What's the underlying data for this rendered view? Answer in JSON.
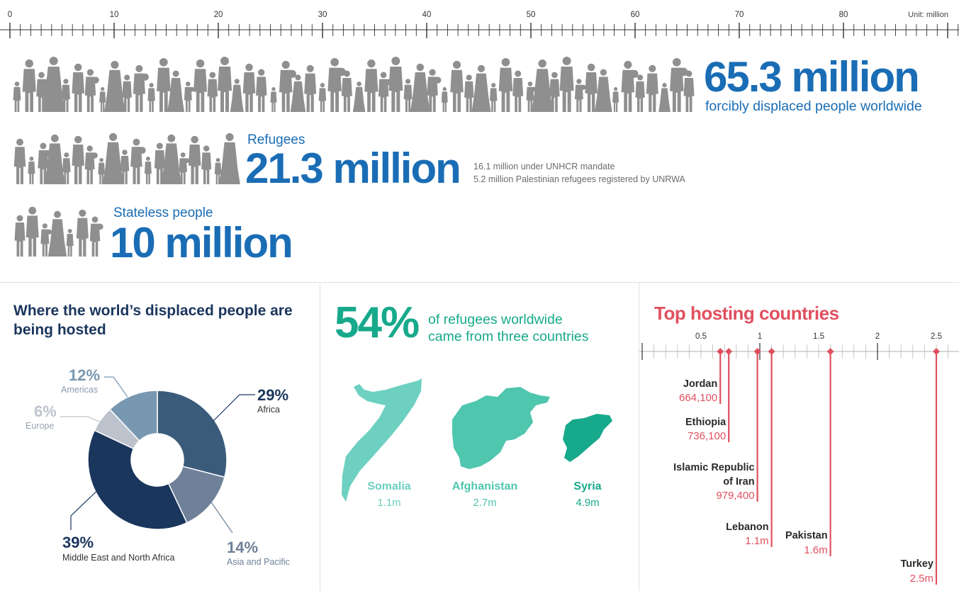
{
  "top_scale": {
    "ticks": [
      "0",
      "10",
      "20",
      "30",
      "40",
      "50",
      "60",
      "70",
      "80"
    ],
    "unit": "Unit: million",
    "max": 91
  },
  "headline": {
    "total": {
      "value_text": "65.3 million",
      "desc": "forcibly displaced people worldwide",
      "value": 65.3
    },
    "refugees": {
      "label": "Refugees",
      "value_text": "21.3 million",
      "value": 21.3,
      "notes": [
        "16.1 million under UNHCR mandate",
        "5.2 million Palestinian refugees registered by UNRWA"
      ]
    },
    "stateless": {
      "label": "Stateless people",
      "value_text": "10 million",
      "value": 10
    }
  },
  "colors": {
    "figure": "#8f8f8f",
    "blue": "#1a6db5",
    "teal": "#17a98b",
    "red": "#e0505f",
    "navy": "#1b365d"
  },
  "chart_data": [
    {
      "type": "pie",
      "title": "Where the world’s displaced people are being hosted",
      "slices": [
        {
          "name": "Africa",
          "value": 29,
          "label": "29%",
          "color": "#3b5b7a"
        },
        {
          "name": "Asia and Pacific",
          "value": 14,
          "label": "14%",
          "color": "#6e8199"
        },
        {
          "name": "Middle East and North Africa",
          "value": 39,
          "label": "39%",
          "color": "#1b365d"
        },
        {
          "name": "Europe",
          "value": 6,
          "label": "6%",
          "color": "#bcc3cc"
        },
        {
          "name": "Americas",
          "value": 12,
          "label": "12%",
          "color": "#7898b2"
        }
      ]
    },
    {
      "type": "table",
      "headline_value": "54%",
      "headline_text": [
        "of refugees worldwide",
        "came from three countries"
      ],
      "countries": [
        {
          "name": "Somalia",
          "value": "1.1m",
          "color": "#6dd0c0"
        },
        {
          "name": "Afghanistan",
          "value": "2.7m",
          "color": "#4fc6ae"
        },
        {
          "name": "Syria",
          "value": "4.9m",
          "color": "#17a98b"
        }
      ]
    },
    {
      "type": "scatter",
      "title": "Top hosting countries",
      "axis_ticks": [
        "0.5",
        "1",
        "1.5",
        "2",
        "2.5"
      ],
      "xlim": [
        0,
        2.73
      ],
      "points": [
        {
          "name": "Jordan",
          "value": 0.6641,
          "label": "664,100"
        },
        {
          "name": "Ethiopia",
          "value": 0.7361,
          "label": "736,100"
        },
        {
          "name": "Islamic Republic\nof Iran",
          "value": 0.9794,
          "label": "979,400"
        },
        {
          "name": "Lebanon",
          "value": 1.1,
          "label": "1.1m"
        },
        {
          "name": "Pakistan",
          "value": 1.6,
          "label": "1.6m"
        },
        {
          "name": "Turkey",
          "value": 2.5,
          "label": "2.5m"
        }
      ]
    }
  ]
}
